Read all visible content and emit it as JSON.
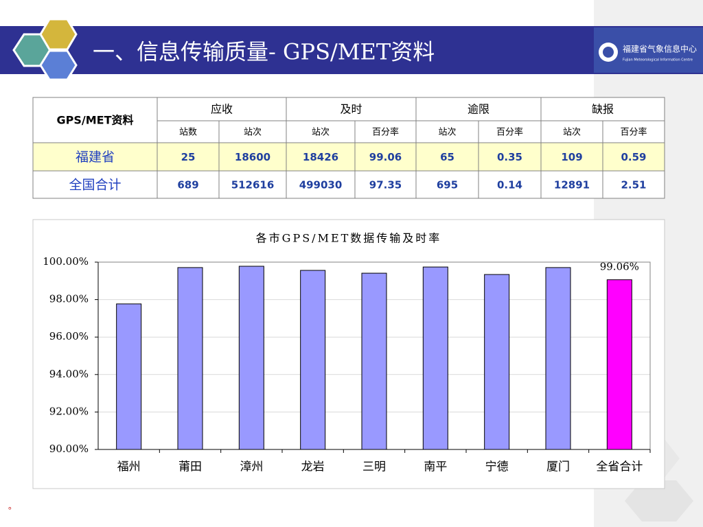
{
  "header": {
    "title": "一、信息传输质量- GPS/MET资料",
    "logo_text": "福建省气象信息中心",
    "logo_subtext": "Fujian Meteorological Information Centre"
  },
  "table": {
    "corner": "GPS/MET资料",
    "groups": [
      "应收",
      "及时",
      "逾限",
      "缺报"
    ],
    "subheaders": [
      "站数",
      "站次",
      "站次",
      "百分率",
      "站次",
      "百分率",
      "站次",
      "百分率"
    ],
    "rows": [
      [
        "福建省",
        25,
        18600,
        18426,
        99.06,
        65,
        0.35,
        109,
        0.59
      ],
      [
        "全国合计",
        689,
        512616,
        499030,
        97.35,
        695,
        0.14,
        12891,
        2.51
      ]
    ]
  },
  "chart_data": {
    "type": "bar",
    "title": "各市GPS/MET数据传输及时率",
    "categories": [
      "福州",
      "莆田",
      "漳州",
      "龙岩",
      "三明",
      "南平",
      "宁德",
      "厦门",
      "全省合计"
    ],
    "values": [
      97.77,
      99.71,
      99.78,
      99.56,
      99.41,
      99.74,
      99.34,
      99.71,
      99.06
    ],
    "value_labels": [
      null,
      null,
      null,
      null,
      null,
      null,
      null,
      null,
      "99.06%"
    ],
    "colors": [
      "#9999ff",
      "#9999ff",
      "#9999ff",
      "#9999ff",
      "#9999ff",
      "#9999ff",
      "#9999ff",
      "#9999ff",
      "#ff00ff"
    ],
    "ylim": [
      90,
      100
    ],
    "yticks": [
      {
        "value": 90,
        "label": "90.00%"
      },
      {
        "value": 92,
        "label": "92.00%"
      },
      {
        "value": 94,
        "label": "94.00%"
      },
      {
        "value": 96,
        "label": "96.00%"
      },
      {
        "value": 98,
        "label": "98.00%"
      },
      {
        "value": 100,
        "label": "100.00%"
      }
    ],
    "grid": true
  },
  "footnote": "。"
}
